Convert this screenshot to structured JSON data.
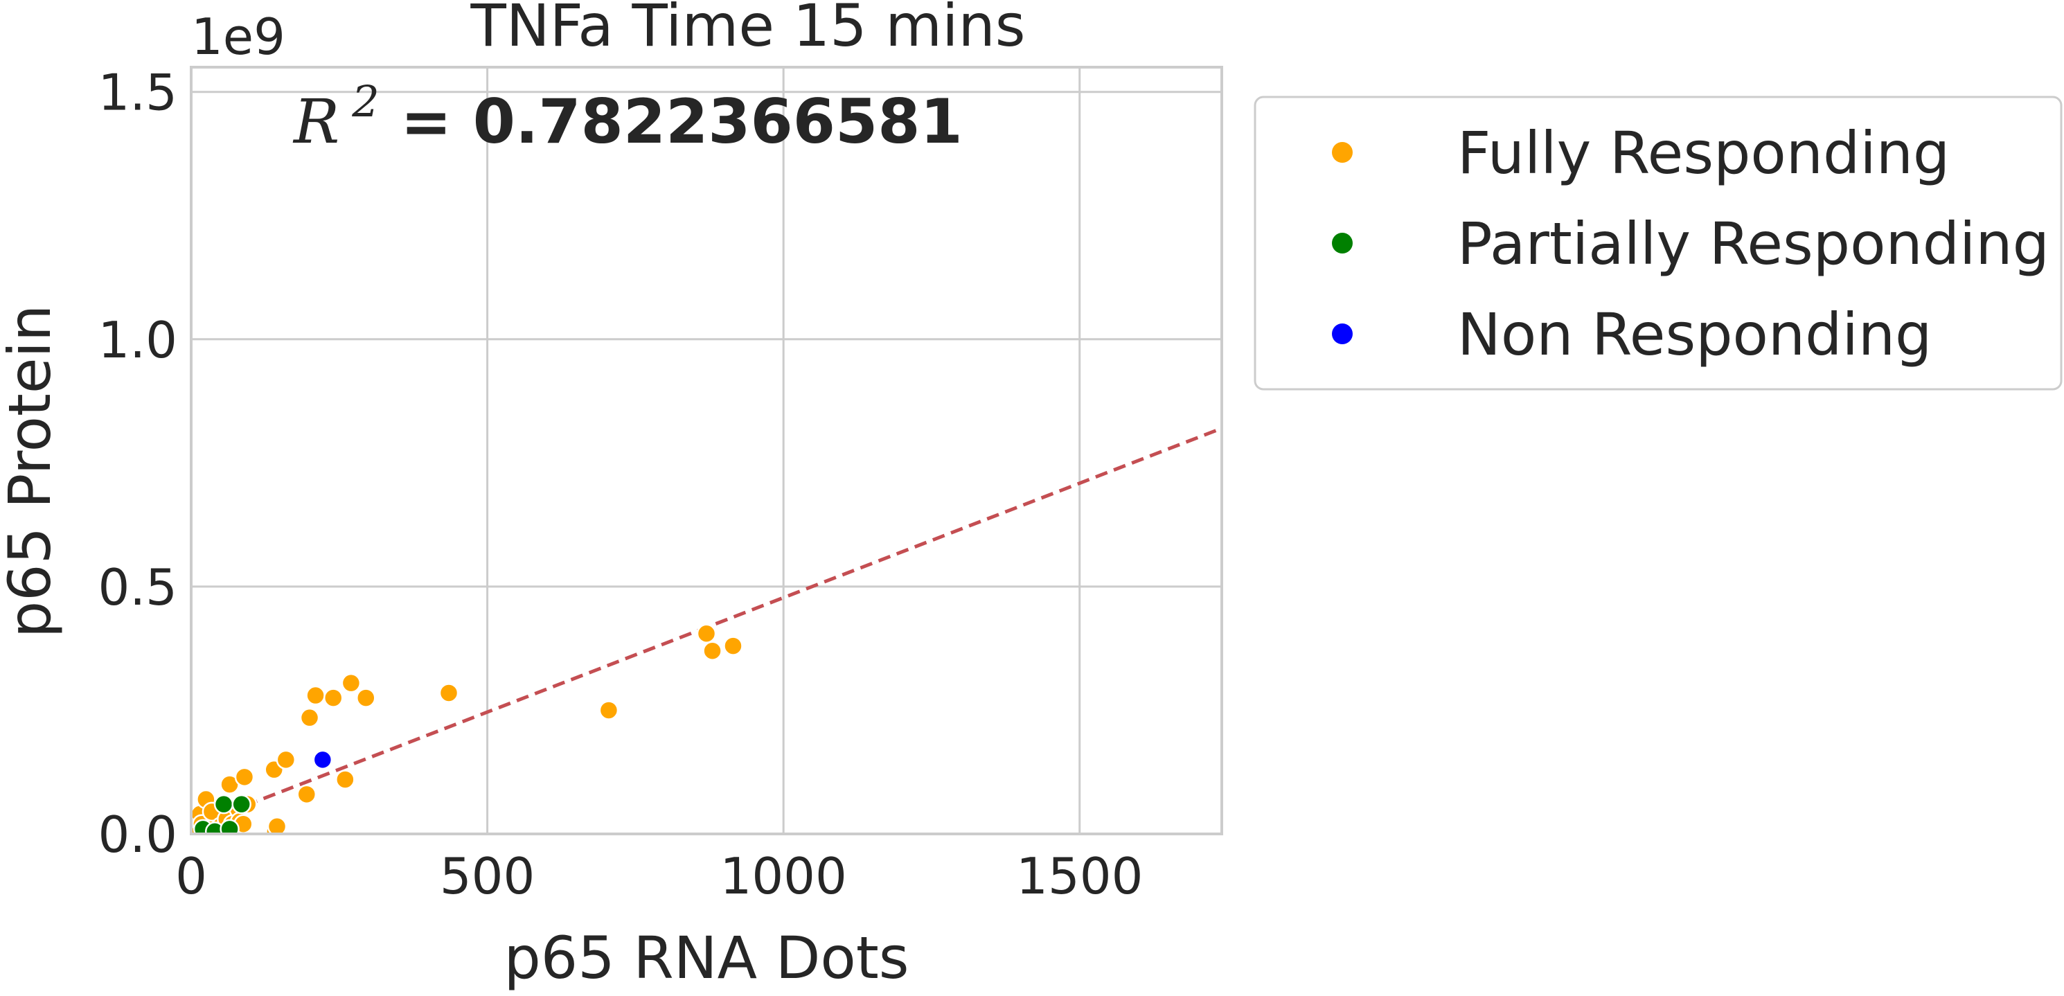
{
  "chart_data": {
    "type": "scatter",
    "title": "TNFa Time 15 mins",
    "xlabel": "p65 RNA Dots",
    "ylabel": "p65 Protein",
    "y_offset_text": "1e9",
    "xlim": [
      0,
      1740
    ],
    "ylim": [
      0,
      1.55
    ],
    "xticks": [
      0,
      500,
      1000,
      1500
    ],
    "yticks": [
      0.0,
      0.5,
      1.0,
      1.5
    ],
    "xtick_labels": [
      "0",
      "500",
      "1000",
      "1500"
    ],
    "ytick_labels": [
      "0.0",
      "0.5",
      "1.0",
      "1.5"
    ],
    "grid": true,
    "legend_placement": "outside-upper-right",
    "annotation": {
      "prefix": "R",
      "superscript": "2",
      "text": " = 0.7822366581"
    },
    "regression_line": {
      "color": "#c44e52",
      "style": "dashed",
      "points": [
        [
          0,
          0.015
        ],
        [
          1740,
          0.82
        ]
      ]
    },
    "series": [
      {
        "name": "Fully Responding",
        "color": "#ffa500",
        "points": [
          [
            5,
            0.01
          ],
          [
            8,
            0.03
          ],
          [
            12,
            0.005
          ],
          [
            15,
            0.04
          ],
          [
            18,
            0.02
          ],
          [
            25,
            0.07
          ],
          [
            30,
            0.01
          ],
          [
            35,
            0.045
          ],
          [
            40,
            0.0
          ],
          [
            50,
            0.015
          ],
          [
            55,
            0.005
          ],
          [
            60,
            0.03
          ],
          [
            65,
            0.1
          ],
          [
            70,
            0.02
          ],
          [
            75,
            0.01
          ],
          [
            80,
            0.05
          ],
          [
            82,
            0.025
          ],
          [
            88,
            0.02
          ],
          [
            90,
            0.115
          ],
          [
            95,
            0.06
          ],
          [
            140,
            0.13
          ],
          [
            142,
            0.005
          ],
          [
            145,
            0.015
          ],
          [
            160,
            0.15
          ],
          [
            195,
            0.08
          ],
          [
            200,
            0.235
          ],
          [
            210,
            0.28
          ],
          [
            240,
            0.275
          ],
          [
            260,
            0.11
          ],
          [
            270,
            0.305
          ],
          [
            295,
            0.275
          ],
          [
            435,
            0.285
          ],
          [
            705,
            0.25
          ],
          [
            870,
            0.405
          ],
          [
            880,
            0.37
          ],
          [
            915,
            0.38
          ]
        ]
      },
      {
        "name": "Partially Responding",
        "color": "#008000",
        "points": [
          [
            20,
            0.01
          ],
          [
            40,
            0.005
          ],
          [
            55,
            0.06
          ],
          [
            65,
            0.01
          ],
          [
            85,
            0.06
          ]
        ]
      },
      {
        "name": "Non Responding",
        "color": "#0000ff",
        "points": [
          [
            222,
            0.15
          ]
        ]
      }
    ]
  }
}
